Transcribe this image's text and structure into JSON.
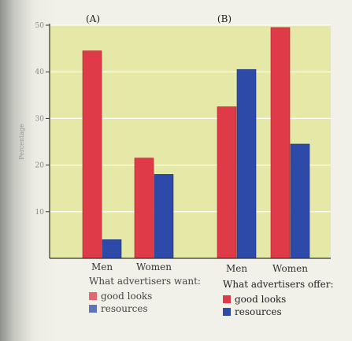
{
  "colors": {
    "plot_bg": "#e5e8a7",
    "grid": "#ffffff",
    "good_looks": "#de3a48",
    "resources": "#2e4aa8",
    "axis": "#333333"
  },
  "chart_data": [
    {
      "type": "bar",
      "panel_label": "(A)",
      "categories": [
        "Men",
        "Women"
      ],
      "series": [
        {
          "name": "good looks",
          "values": [
            44.5,
            21.5
          ]
        },
        {
          "name": "resources",
          "values": [
            4,
            18
          ]
        }
      ],
      "ylim": [
        0,
        50
      ],
      "yticks": [
        "10",
        "20",
        "30",
        "40",
        "50"
      ],
      "ylabel": "Percentage",
      "grid": true,
      "legend_title": "What advertisers want:"
    },
    {
      "type": "bar",
      "panel_label": "(B)",
      "categories": [
        "Men",
        "Women"
      ],
      "series": [
        {
          "name": "good looks",
          "values": [
            32.5,
            49.5
          ]
        },
        {
          "name": "resources",
          "values": [
            40.5,
            24.5
          ]
        }
      ],
      "ylim": [
        0,
        50
      ],
      "legend_title": "What advertisers offer:"
    }
  ]
}
